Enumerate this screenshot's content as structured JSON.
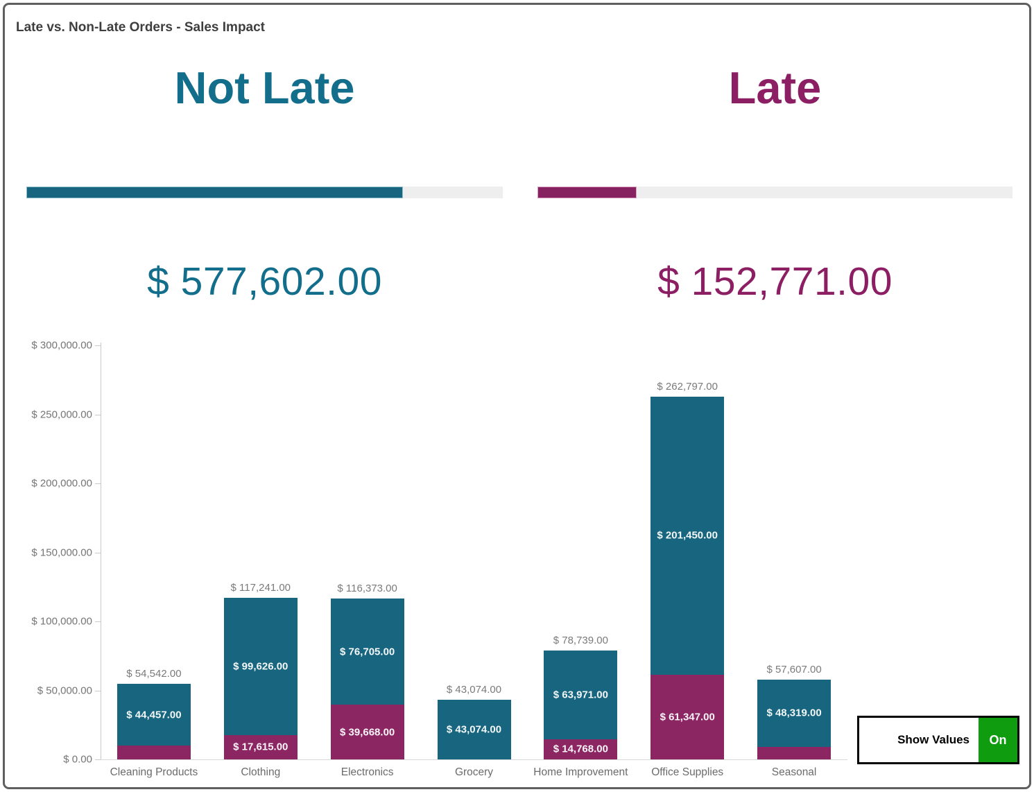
{
  "window": {
    "title": "Late vs. Non-Late Orders - Sales Impact"
  },
  "kpi": {
    "not_late": {
      "label": "Not Late",
      "value": "$ 577,602.00",
      "text_color": "#136E8C",
      "bar_color": "#17657F",
      "progress_pct": 79.1
    },
    "late": {
      "label": "Late",
      "value": "$ 152,771.00",
      "text_color": "#8C1F63",
      "bar_color": "#8C2663",
      "progress_pct": 20.9
    }
  },
  "controls": {
    "show_values_label": "Show Values",
    "toggle_state": "On",
    "toggle_color": "#0F9D0F"
  },
  "chart_data": {
    "type": "bar",
    "stacked": true,
    "title": "",
    "xlabel": "",
    "ylabel": "",
    "ylim": [
      0,
      300000
    ],
    "ytick_step": 50000,
    "ytick_labels": [
      "$ 0.00",
      "$ 50,000.00",
      "$ 100,000.00",
      "$ 150,000.00",
      "$ 200,000.00",
      "$ 250,000.00",
      "$ 300,000.00"
    ],
    "grid": false,
    "legend": false,
    "categories": [
      "Cleaning Products",
      "Clothing",
      "Electronics",
      "Grocery",
      "Home Improvement",
      "Office Supplies",
      "Seasonal"
    ],
    "series": [
      {
        "name": "Late",
        "color": "#8C2663",
        "values": [
          10085,
          17615,
          39668,
          0,
          14768,
          61347,
          9288
        ],
        "labels": [
          null,
          "$ 17,615.00",
          "$ 39,668.00",
          null,
          "$ 14,768.00",
          "$ 61,347.00",
          null
        ]
      },
      {
        "name": "Not Late",
        "color": "#17657F",
        "values": [
          44457,
          99626,
          76705,
          43074,
          63971,
          201450,
          48319
        ],
        "labels": [
          "$ 44,457.00",
          "$ 99,626.00",
          "$ 76,705.00",
          "$ 43,074.00",
          "$ 63,971.00",
          "$ 201,450.00",
          "$ 48,319.00"
        ]
      }
    ],
    "totals": [
      54542,
      117241,
      116373,
      43074,
      78739,
      262797,
      57607
    ],
    "total_labels": [
      "$ 54,542.00",
      "$ 117,241.00",
      "$ 116,373.00",
      "$ 43,074.00",
      "$ 78,739.00",
      "$ 262,797.00",
      "$ 57,607.00"
    ]
  }
}
